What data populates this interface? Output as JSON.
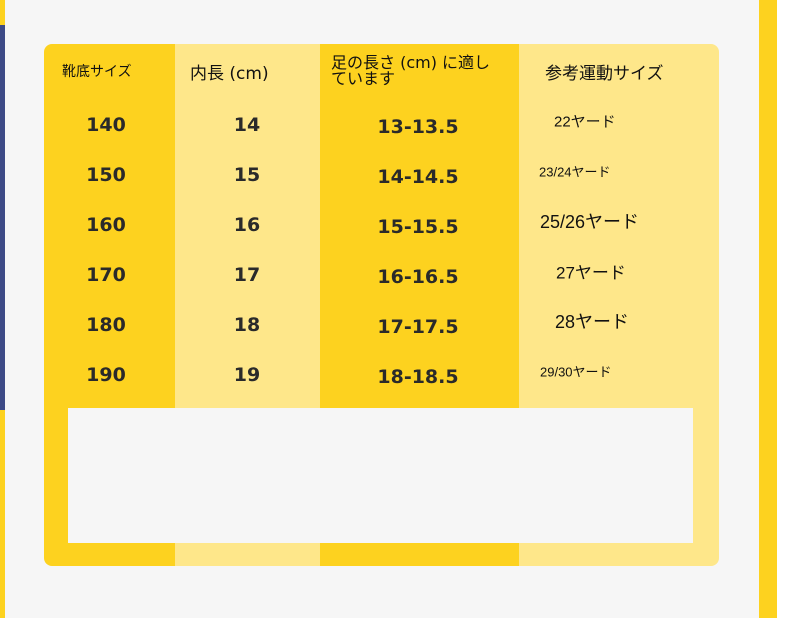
{
  "colors": {
    "dark_yellow": "#fdd21f",
    "light_yellow": "#fee78a",
    "navy": "#3d4a86",
    "background": "#f6f6f6"
  },
  "headers": [
    "靴底サイズ",
    "内長 (cm)",
    "足の長さ (cm) に適し",
    "ています",
    "参考運動サイズ"
  ],
  "rows": [
    {
      "sole": "140",
      "inner": "14",
      "foot": "13-13.5",
      "sport": "22ヤード"
    },
    {
      "sole": "150",
      "inner": "15",
      "foot": "14-14.5",
      "sport": "23/24ヤード"
    },
    {
      "sole": "160",
      "inner": "16",
      "foot": "15-15.5",
      "sport": "25/26ヤード"
    },
    {
      "sole": "170",
      "inner": "17",
      "foot": "16-16.5",
      "sport": "27ヤード"
    },
    {
      "sole": "180",
      "inner": "18",
      "foot": "17-17.5",
      "sport": "28ヤード"
    },
    {
      "sole": "190",
      "inner": "19",
      "foot": "18-18.5",
      "sport": "29/30ヤード"
    }
  ]
}
